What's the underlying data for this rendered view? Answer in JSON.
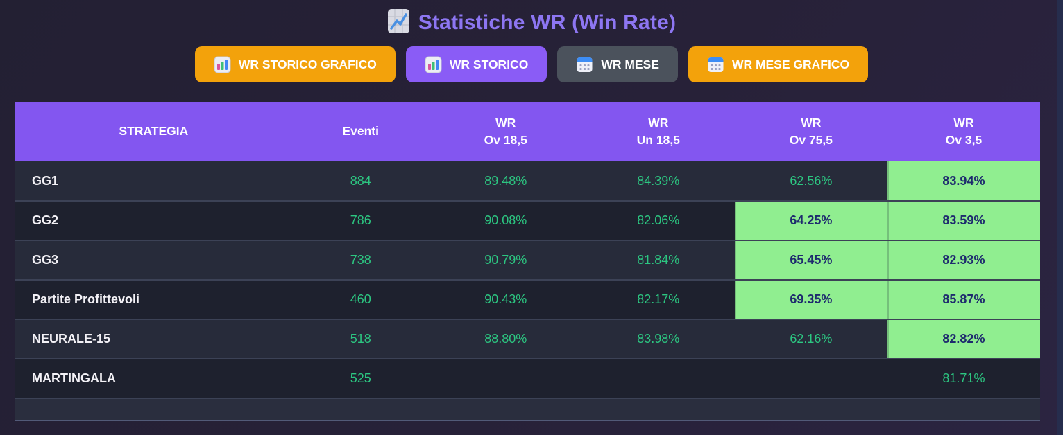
{
  "page": {
    "title": "Statistiche WR (Win Rate)",
    "title_icon": "chart-increasing-icon"
  },
  "toolbar": {
    "buttons": [
      {
        "label": "WR STORICO GRAFICO",
        "icon": "bar-chart-icon",
        "style": "orange"
      },
      {
        "label": "WR STORICO",
        "icon": "bar-chart-icon",
        "style": "purple"
      },
      {
        "label": "WR MESE",
        "icon": "calendar-icon",
        "style": "gray"
      },
      {
        "label": "WR MESE GRAFICO",
        "icon": "calendar-icon",
        "style": "orange"
      }
    ]
  },
  "table": {
    "columns": [
      {
        "line1": "STRATEGIA"
      },
      {
        "line1": "Eventi"
      },
      {
        "line1": "WR",
        "line2": "Ov 18,5"
      },
      {
        "line1": "WR",
        "line2": "Un 18,5"
      },
      {
        "line1": "WR",
        "line2": "Ov 75,5"
      },
      {
        "line1": "WR",
        "line2": "Ov 3,5"
      }
    ],
    "rows": [
      {
        "strategy": "GG1",
        "cells": [
          {
            "value": "884",
            "highlight": false
          },
          {
            "value": "89.48%",
            "highlight": false
          },
          {
            "value": "84.39%",
            "highlight": false
          },
          {
            "value": "62.56%",
            "highlight": false
          },
          {
            "value": "83.94%",
            "highlight": true
          }
        ]
      },
      {
        "strategy": "GG2",
        "cells": [
          {
            "value": "786",
            "highlight": false
          },
          {
            "value": "90.08%",
            "highlight": false
          },
          {
            "value": "82.06%",
            "highlight": false
          },
          {
            "value": "64.25%",
            "highlight": true
          },
          {
            "value": "83.59%",
            "highlight": true
          }
        ]
      },
      {
        "strategy": "GG3",
        "cells": [
          {
            "value": "738",
            "highlight": false
          },
          {
            "value": "90.79%",
            "highlight": false
          },
          {
            "value": "81.84%",
            "highlight": false
          },
          {
            "value": "65.45%",
            "highlight": true
          },
          {
            "value": "82.93%",
            "highlight": true
          }
        ]
      },
      {
        "strategy": "Partite Profittevoli",
        "cells": [
          {
            "value": "460",
            "highlight": false
          },
          {
            "value": "90.43%",
            "highlight": false
          },
          {
            "value": "82.17%",
            "highlight": false
          },
          {
            "value": "69.35%",
            "highlight": true
          },
          {
            "value": "85.87%",
            "highlight": true
          }
        ]
      },
      {
        "strategy": "NEURALE-15",
        "cells": [
          {
            "value": "518",
            "highlight": false
          },
          {
            "value": "88.80%",
            "highlight": false
          },
          {
            "value": "83.98%",
            "highlight": false
          },
          {
            "value": "62.16%",
            "highlight": false
          },
          {
            "value": "82.82%",
            "highlight": true
          }
        ]
      },
      {
        "strategy": "MARTINGALA",
        "cells": [
          {
            "value": "525",
            "highlight": false
          },
          {
            "value": "",
            "highlight": false
          },
          {
            "value": "",
            "highlight": false
          },
          {
            "value": "",
            "highlight": false
          },
          {
            "value": "81.71%",
            "highlight": false
          }
        ]
      }
    ]
  },
  "colors": {
    "background": "#272138",
    "header_purple": "#8356f0",
    "title_purple": "#8d76f2",
    "button_orange": "#f3a20b",
    "button_purple": "#8a5cf6",
    "button_gray": "#4b525c",
    "row_light": "#272b3a",
    "row_dark": "#1e212e",
    "value_green": "#2cc681",
    "highlight_green": "#90ee90",
    "highlight_text_navy": "#1e2b6e"
  }
}
